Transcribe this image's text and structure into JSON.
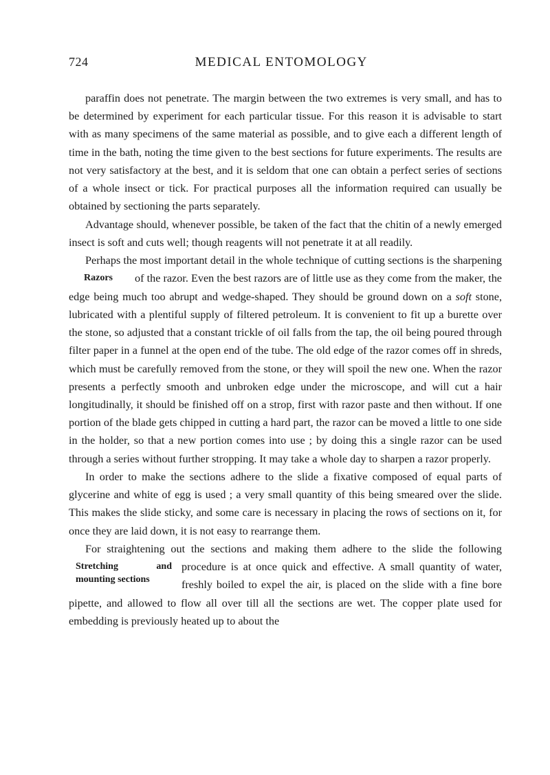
{
  "pageNumber": "724",
  "runningTitle": "MEDICAL ENTOMOLOGY",
  "paragraphs": {
    "p1": "paraffin does not penetrate. The margin between the two extremes is very small, and has to be determined by experiment for each particular tissue. For this reason it is advisable to start with as many specimens of the same material as possible, and to give each a different length of time in the bath, noting the time given to the best sections for future experiments. The results are not very satisfactory at the best, and it is seldom that one can obtain a perfect series of sections of a whole insect or tick. For practical purposes all the information required can usually be obtained by sectioning the parts separately.",
    "p2": "Advantage should, whenever possible, be taken of the fact that the chitin of a newly emerged insect is soft and cuts well; though reagents will not penetrate it at all readily.",
    "p3a": "Perhaps the most important detail in the whole technique of cutting sections is the sharpening of the razor. Even the best razors are of ",
    "p3b": "little use as they come from the maker, the edge being much too abrupt and wedge-shaped. They should be ",
    "p3c": "ground down on a ",
    "p3_soft": "soft",
    "p3d": " stone, lubricated with a plentiful supply of filtered petroleum. It is convenient to fit up a burette over the stone, so adjusted that a constant trickle of oil falls from the tap, the oil being poured through filter paper in a funnel at the open end of the tube. The old edge of the razor comes off in shreds, which must be carefully removed from the stone, or they will spoil the new one. When the razor presents a perfectly smooth and unbroken edge under the microscope, and will cut a hair longitudinally, it should be finished off on a strop, first with razor paste and then without. If one portion of the blade gets chipped in cutting a hard part, the razor can be moved a little to one side in the holder, so that a new portion comes into use ; by doing this a single razor can be used through a series without further stropping. It may take a whole day to sharpen a razor properly.",
    "p4": "In order to make the sections adhere to the slide a fixative composed of equal parts of glycerine and white of egg is used ; a very small quantity of this being smeared over the slide. This makes the slide sticky, and some care is necessary in placing the rows of sections on it, for once they are laid down, it is not easy to rearrange them.",
    "p5a": "For straightening out the sections and making them adhere to the slide the following procedure is at once quick and effective. A small ",
    "p5b": "quantity of water, freshly boiled to expel the air, is placed on the slide with a fine bore pipette, and allowed to flow all over till all the sections are wet. The ",
    "p5c": "copper plate used for embedding is previously heated up to about the"
  },
  "sidenotes": {
    "razors": "Razors",
    "stretching": "Stretching and mounting sections"
  },
  "style": {
    "background": "#ffffff",
    "textColor": "#1a1a1a",
    "bodyFontSize": 16.2,
    "lineHeight": 1.62,
    "titleFontSize": 19,
    "pageNumFontSize": 18,
    "sidenoteFontSize": 14,
    "indent": 24,
    "pageWidth": 800,
    "pageHeight": 1128
  }
}
